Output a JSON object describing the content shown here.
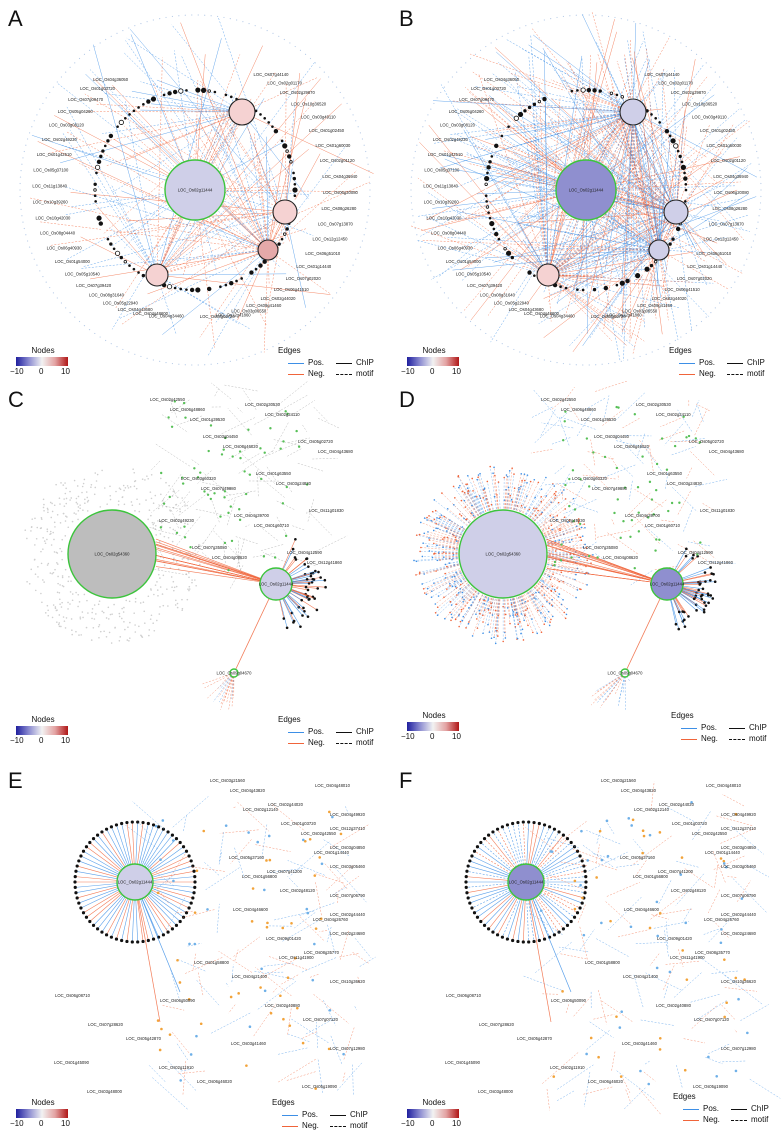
{
  "colors": {
    "pos": "#3d8fe6",
    "neg": "#f0643a",
    "ring": "#3cc43c",
    "pink": "#f5d2d2",
    "lav": "#cfcfe8",
    "mid": "#8f8fcf",
    "gray": "#bdbdbd"
  },
  "legend": {
    "nodes_title": "Nodes",
    "ticks": [
      "−10",
      "0",
      "10"
    ],
    "edges_title": "Edges",
    "pos": "Pos.",
    "neg": "Neg.",
    "chip": "ChIP",
    "motif": "motif"
  },
  "panels": [
    {
      "letter": "A",
      "hub_label": "LOC_Os02g11444",
      "labels": [
        "LOC_Os04g36050",
        "LOC_Os01g03720",
        "LOC_Os07g09470",
        "LOC_Os05g04260",
        "LOC_Os03g08120",
        "LOC_Os02g49230",
        "LOC_Os01g42510",
        "LOC_Os05g37100",
        "LOC_Os11g13840",
        "LOC_Os10g39260",
        "LOC_Os10g42030",
        "LOC_Os08g04440",
        "LOC_Os06g40930",
        "LOC_Os01g54000",
        "LOC_Os05g10540",
        "LOC_Os07g39420",
        "LOC_Os08g31640",
        "LOC_Os05g22940",
        "LOC_Os04g43680",
        "LOC_Os04g48600",
        "LOC_Os04g34460",
        "LOC_Os03g06720",
        "LOC_Os12g41860",
        "LOC_Os03g06550",
        "LOC_Os09g41460",
        "LOC_Os02g44020",
        "LOC_Os06g41510",
        "LOC_Os07g02020",
        "LOC_Os01g14440",
        "LOC_Os06g51010",
        "LOC_Os12g12450",
        "LOC_Os07g13870",
        "LOC_Os08g26280",
        "LOC_Os06g20080",
        "LOC_Os04g36940",
        "LOC_Os02g01120",
        "LOC_Os01g60030",
        "LOC_Os01g02450",
        "LOC_Os03g49110",
        "LOC_Os10g36520",
        "LOC_Os02g29870",
        "LOC_Os02g01170",
        "LOC_Os07g44140"
      ]
    },
    {
      "letter": "B",
      "hub_label": "LOC_Os02g11444",
      "labels": [
        "LOC_Os04g36050",
        "LOC_Os01g03720",
        "LOC_Os07g09470",
        "LOC_Os05g04260",
        "LOC_Os03g08120",
        "LOC_Os02g49230",
        "LOC_Os01g42510",
        "LOC_Os05g37100",
        "LOC_Os11g13840",
        "LOC_Os10g39260",
        "LOC_Os10g42030",
        "LOC_Os08g04440",
        "LOC_Os06g40930",
        "LOC_Os01g54000",
        "LOC_Os05g10540",
        "LOC_Os07g39420",
        "LOC_Os08g31640",
        "LOC_Os05g22940",
        "LOC_Os04g43680",
        "LOC_Os04g48600",
        "LOC_Os04g34460",
        "LOC_Os03g06720",
        "LOC_Os12g41860",
        "LOC_Os03g06550",
        "LOC_Os09g41460",
        "LOC_Os02g44020",
        "LOC_Os06g41510",
        "LOC_Os07g02020",
        "LOC_Os01g14440",
        "LOC_Os06g51010",
        "LOC_Os12g12450",
        "LOC_Os07g13870",
        "LOC_Os08g26280",
        "LOC_Os06g20080",
        "LOC_Os04g36940",
        "LOC_Os02g01120",
        "LOC_Os01g60030",
        "LOC_Os01g02450",
        "LOC_Os03g49110",
        "LOC_Os10g36520",
        "LOC_Os02g29870",
        "LOC_Os02g01170",
        "LOC_Os07g44140"
      ]
    },
    {
      "letter": "C",
      "big_label": "LOC_Os02g54360",
      "hub_label": "LOC_Os02g11444",
      "small_label": "LOC_Os09g04670",
      "labels": [
        "LOC_Os02g42550",
        "LOC_Os03g04450",
        "LOC_Os01g63550",
        "LOC_Os11g01830",
        "LOC_Os07g35080",
        "LOC_Os02g30530",
        "LOC_Os05g02720",
        "LOC_Os03g60320",
        "LOC_Os04g39700",
        "LOC_Os04g12590",
        "LOC_Os06g48860",
        "LOC_Os06g46020",
        "LOC_Os03g24830",
        "LOC_Os02g49230",
        "LOC_Os04g08620",
        "LOC_Os02g24110",
        "LOC_Os04g43680",
        "LOC_Os07g49880",
        "LOC_Os01g60710",
        "LOC_Os12g41860",
        "LOC_Os01g39530"
      ]
    },
    {
      "letter": "D",
      "big_label": "LOC_Os02g54360",
      "hub_label": "LOC_Os02g11444",
      "small_label": "LOC_Os09g04670",
      "labels": [
        "LOC_Os02g42550",
        "LOC_Os03g04450",
        "LOC_Os01g63550",
        "LOC_Os11g01830",
        "LOC_Os07g35080",
        "LOC_Os02g30530",
        "LOC_Os05g02720",
        "LOC_Os03g60320",
        "LOC_Os04g39700",
        "LOC_Os04g12590",
        "LOC_Os06g48860",
        "LOC_Os06g46020",
        "LOC_Os03g24830",
        "LOC_Os02g49230",
        "LOC_Os04g08620",
        "LOC_Os02g24110",
        "LOC_Os04g43680",
        "LOC_Os07g49880",
        "LOC_Os01g60710",
        "LOC_Os12g41860",
        "LOC_Os01g39530"
      ]
    },
    {
      "letter": "E",
      "hub_label": "LOC_Os02g11444",
      "labels": [
        "LOC_Os03g21560",
        "LOC_Os01g03720",
        "LOC_Os03g05460",
        "LOC_Os04g46600",
        "LOC_Os08g35770",
        "LOC_Os06g08710",
        "LOC_Os05g42870",
        "LOC_Os06g46020",
        "LOC_Os02g44020",
        "LOC_Os03g04850",
        "LOC_Os02g48120",
        "LOC_Os02g24680",
        "LOC_Os04g21400",
        "LOC_Os07g07120",
        "LOC_Os01g45090",
        "LOC_Os04g48010",
        "LOC_Os12g37410",
        "LOC_Os07g41200",
        "LOC_Os02g44440",
        "LOC_Os11g41900",
        "LOC_Os06g50090",
        "LOC_Os03g41460",
        "LOC_Os05g19090",
        "LOC_Os02g12140",
        "LOC_Os01g14440",
        "LOC_Os07g06790",
        "LOC_Os09g01420",
        "LOC_Os10g36620",
        "LOC_Os07g28620",
        "LOC_Os02g11910",
        "LOC_Os04g43820",
        "LOC_Os02g42550",
        "LOC_Os01g56800",
        "LOC_Os04g26760",
        "LOC_Os01g58800",
        "LOC_Os02g40880",
        "LOC_Os07g12980",
        "LOC_Os03g48000",
        "LOC_Os04g49920",
        "LOC_Os05g37160"
      ]
    },
    {
      "letter": "F",
      "hub_label": "LOC_Os02g11444",
      "labels": [
        "LOC_Os03g21560",
        "LOC_Os01g03720",
        "LOC_Os03g05460",
        "LOC_Os04g46600",
        "LOC_Os08g35770",
        "LOC_Os06g08710",
        "LOC_Os05g42870",
        "LOC_Os06g46020",
        "LOC_Os02g44020",
        "LOC_Os03g04850",
        "LOC_Os02g48120",
        "LOC_Os02g24680",
        "LOC_Os04g21400",
        "LOC_Os07g07120",
        "LOC_Os01g45090",
        "LOC_Os04g48010",
        "LOC_Os12g37410",
        "LOC_Os07g41200",
        "LOC_Os02g44440",
        "LOC_Os11g41900",
        "LOC_Os06g50090",
        "LOC_Os03g41460",
        "LOC_Os05g19090",
        "LOC_Os02g12140",
        "LOC_Os01g14440",
        "LOC_Os07g06790",
        "LOC_Os09g01420",
        "LOC_Os10g36620",
        "LOC_Os07g28620",
        "LOC_Os02g11910",
        "LOC_Os04g43820",
        "LOC_Os02g42550",
        "LOC_Os01g56800",
        "LOC_Os04g26760",
        "LOC_Os01g58800",
        "LOC_Os02g40880",
        "LOC_Os07g12980",
        "LOC_Os03g48000",
        "LOC_Os04g49920",
        "LOC_Os05g37160"
      ]
    }
  ]
}
